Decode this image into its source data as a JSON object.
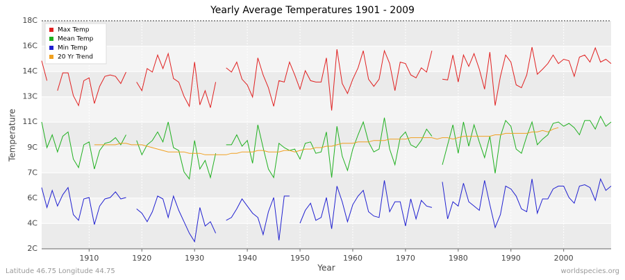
{
  "chart_data": {
    "type": "line",
    "title": "Yearly Average Temperatures 1901 - 2009",
    "x_label": "Year",
    "y_label": "Temperature",
    "footer_left": "Latitude 46.75 Longitude 44.75",
    "footer_right": "worldspecies.org",
    "legend": "top-left",
    "grid": true,
    "xlim": [
      1901,
      2009
    ],
    "xticks": [
      1910,
      1920,
      1930,
      1940,
      1950,
      1960,
      1970,
      1980,
      1990,
      2000
    ],
    "ylim": [
      2,
      18
    ],
    "yticks": [
      {
        "value": 2,
        "label": "2C"
      },
      {
        "value": 3.78,
        "label": "4C"
      },
      {
        "value": 5.56,
        "label": "6C"
      },
      {
        "value": 7.33,
        "label": "7C"
      },
      {
        "value": 9.11,
        "label": "9C"
      },
      {
        "value": 10.89,
        "label": "11C"
      },
      {
        "value": 12.67,
        "label": "13C"
      },
      {
        "value": 14.44,
        "label": "14C"
      },
      {
        "value": 16.22,
        "label": "16C"
      },
      {
        "value": 18,
        "label": "18C"
      }
    ],
    "x": [
      1901,
      1902,
      1903,
      1904,
      1905,
      1906,
      1907,
      1908,
      1909,
      1910,
      1911,
      1912,
      1913,
      1914,
      1915,
      1916,
      1917,
      1918,
      1919,
      1920,
      1921,
      1922,
      1923,
      1924,
      1925,
      1926,
      1927,
      1928,
      1929,
      1930,
      1931,
      1932,
      1933,
      1934,
      1935,
      1936,
      1937,
      1938,
      1939,
      1940,
      1941,
      1942,
      1943,
      1944,
      1945,
      1946,
      1947,
      1948,
      1949,
      1950,
      1951,
      1952,
      1953,
      1954,
      1955,
      1956,
      1957,
      1958,
      1959,
      1960,
      1961,
      1962,
      1963,
      1964,
      1965,
      1966,
      1967,
      1968,
      1969,
      1970,
      1971,
      1972,
      1973,
      1974,
      1975,
      1976,
      1977,
      1978,
      1979,
      1980,
      1981,
      1982,
      1983,
      1984,
      1985,
      1986,
      1987,
      1988,
      1989,
      1990,
      1991,
      1992,
      1993,
      1994,
      1995,
      1996,
      1997,
      1998,
      1999,
      2000,
      2001,
      2002,
      2003,
      2004,
      2005,
      2006,
      2007,
      2008,
      2009
    ],
    "series": [
      {
        "name": "Max Temp",
        "color": "#e02020",
        "values": [
          15.2,
          13.8,
          null,
          13.1,
          14.35,
          14.35,
          12.75,
          12.05,
          13.8,
          14.0,
          12.2,
          13.4,
          14.1,
          14.2,
          14.1,
          13.6,
          14.4,
          null,
          13.7,
          13.1,
          14.65,
          14.4,
          15.6,
          14.65,
          15.7,
          13.95,
          13.7,
          12.7,
          12.0,
          15.1,
          12.1,
          13.1,
          11.9,
          13.7,
          null,
          14.7,
          14.4,
          15.1,
          13.9,
          13.5,
          12.65,
          15.4,
          14.2,
          13.3,
          12.0,
          13.8,
          13.7,
          15.1,
          14.2,
          13.2,
          14.5,
          13.8,
          13.7,
          13.7,
          15.4,
          11.7,
          16.0,
          13.6,
          12.9,
          13.9,
          14.7,
          15.9,
          13.9,
          13.4,
          13.9,
          15.9,
          15.0,
          13.1,
          15.1,
          15.0,
          14.2,
          14.0,
          14.7,
          14.4,
          15.9,
          null,
          13.9,
          13.85,
          15.6,
          13.7,
          15.6,
          14.8,
          15.7,
          14.6,
          13.2,
          15.8,
          12.05,
          14.1,
          15.6,
          15.1,
          13.5,
          13.3,
          14.2,
          16.15,
          14.25,
          14.6,
          15.0,
          15.6,
          15.0,
          15.3,
          15.2,
          14.1,
          15.45,
          15.6,
          15.1,
          16.1,
          15.1,
          15.3,
          15.0
        ]
      },
      {
        "name": "Mean Temp",
        "color": "#20b020",
        "values": [
          10.9,
          9.1,
          10.0,
          8.8,
          9.9,
          10.2,
          8.3,
          7.7,
          9.3,
          9.5,
          7.6,
          8.9,
          9.4,
          9.5,
          9.8,
          9.3,
          10.0,
          null,
          9.6,
          8.6,
          9.3,
          9.6,
          10.2,
          9.5,
          10.9,
          9.1,
          8.9,
          7.4,
          6.9,
          9.6,
          7.6,
          8.2,
          7.0,
          8.7,
          null,
          9.3,
          9.3,
          10.0,
          9.2,
          9.6,
          8.0,
          10.7,
          9.1,
          7.6,
          7.0,
          9.4,
          9.1,
          8.9,
          9.0,
          8.3,
          9.4,
          9.5,
          8.7,
          8.8,
          10.2,
          7.0,
          10.6,
          8.5,
          7.5,
          9.0,
          10.0,
          10.9,
          9.5,
          8.8,
          9.0,
          11.2,
          9.0,
          7.9,
          9.8,
          10.2,
          9.3,
          9.1,
          9.6,
          10.4,
          9.9,
          null,
          7.9,
          9.3,
          10.7,
          8.7,
          10.9,
          9.2,
          10.7,
          9.5,
          8.4,
          9.9,
          7.3,
          9.9,
          11.0,
          10.6,
          9.0,
          8.7,
          9.9,
          10.9,
          9.3,
          9.7,
          10.0,
          10.8,
          10.9,
          10.6,
          10.8,
          10.5,
          10.0,
          11.0,
          11.0,
          10.4,
          11.3,
          10.6,
          10.9
        ]
      },
      {
        "name": "Min Temp",
        "color": "#2020d0",
        "values": [
          6.3,
          4.9,
          6.1,
          5.0,
          5.8,
          6.3,
          4.4,
          4.0,
          5.5,
          5.6,
          3.7,
          5.0,
          5.5,
          5.6,
          6.0,
          5.5,
          5.6,
          null,
          4.8,
          4.5,
          3.9,
          4.6,
          5.7,
          5.5,
          4.2,
          5.7,
          4.7,
          3.9,
          3.1,
          2.5,
          4.9,
          3.6,
          3.9,
          3.1,
          null,
          4.0,
          4.2,
          4.8,
          5.5,
          5.0,
          4.5,
          4.2,
          3.0,
          4.6,
          5.6,
          2.6,
          5.7,
          5.7,
          null,
          3.8,
          4.7,
          5.2,
          4.0,
          4.2,
          5.6,
          3.4,
          6.4,
          5.3,
          3.9,
          5.1,
          5.7,
          6.1,
          4.6,
          4.3,
          4.2,
          6.8,
          4.6,
          5.3,
          5.3,
          3.6,
          5.5,
          4.1,
          5.4,
          5.0,
          4.9,
          null,
          6.7,
          4.1,
          5.3,
          5.0,
          6.6,
          5.3,
          5.0,
          4.7,
          6.8,
          5.1,
          3.5,
          4.4,
          6.4,
          6.2,
          5.7,
          4.8,
          4.6,
          6.9,
          4.5,
          5.5,
          5.5,
          6.2,
          6.4,
          6.4,
          5.6,
          5.2,
          6.4,
          6.5,
          6.3,
          5.4,
          6.9,
          6.1,
          6.4
        ]
      },
      {
        "name": "20 Yr Trend",
        "color": "#f0a020",
        "values": [
          null,
          null,
          null,
          null,
          null,
          null,
          null,
          null,
          null,
          null,
          9.3,
          9.3,
          9.3,
          9.3,
          9.3,
          9.4,
          9.4,
          9.3,
          9.3,
          9.3,
          9.2,
          9.1,
          9.0,
          8.9,
          8.8,
          8.8,
          8.8,
          8.8,
          8.7,
          8.7,
          8.7,
          8.6,
          8.6,
          8.6,
          8.6,
          8.6,
          8.7,
          8.7,
          8.8,
          8.8,
          8.8,
          8.9,
          8.9,
          8.8,
          8.8,
          8.8,
          8.9,
          8.9,
          8.8,
          8.9,
          9.0,
          9.0,
          9.1,
          9.1,
          9.2,
          9.2,
          9.3,
          9.4,
          9.4,
          9.4,
          9.5,
          9.5,
          9.5,
          9.6,
          9.6,
          9.6,
          9.7,
          9.7,
          9.7,
          9.7,
          9.8,
          9.8,
          9.8,
          9.8,
          9.8,
          9.7,
          9.8,
          9.8,
          9.7,
          9.8,
          9.9,
          9.9,
          9.9,
          9.9,
          9.9,
          9.9,
          10.0,
          10.0,
          10.1,
          10.1,
          10.1,
          10.1,
          10.1,
          10.2,
          10.2,
          10.3,
          10.2,
          10.4,
          10.5,
          null,
          null,
          null,
          null,
          null,
          null,
          null,
          null,
          null,
          null
        ]
      }
    ]
  }
}
